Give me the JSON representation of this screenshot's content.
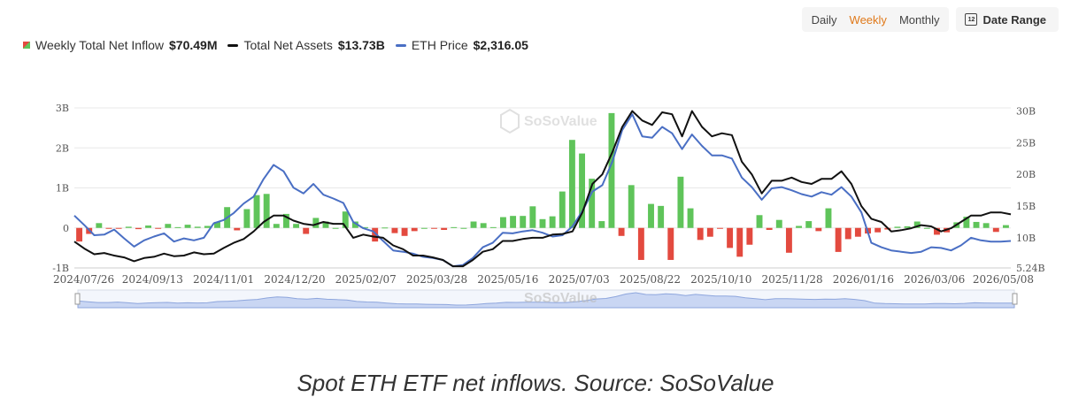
{
  "controls": {
    "periods": [
      "Daily",
      "Weekly",
      "Monthly"
    ],
    "active_period": "Weekly",
    "date_range_label": "Date Range",
    "calendar_day": "12"
  },
  "legend": {
    "inflow_label": "Weekly Total Net Inflow",
    "inflow_value": "$70.49M",
    "assets_label": "Total Net Assets",
    "assets_value": "$13.73B",
    "price_label": "ETH Price",
    "price_value": "$2,316.05"
  },
  "watermark": "SoSoValue",
  "caption": "Spot ETH ETF net inflows. Source: SoSoValue",
  "colors": {
    "positive": "#5fc45a",
    "negative": "#e34a3f",
    "assets": "#111111",
    "price": "#4a6fc4",
    "navigator": "#c9d6f3"
  },
  "chart_data": {
    "type": "bar+line",
    "x_tick_labels": [
      "2024/07/26",
      "2024/09/13",
      "2024/11/01",
      "2024/12/20",
      "2025/02/07",
      "2025/03/28",
      "2025/05/16",
      "2025/07/03",
      "2025/08/22",
      "2025/10/10",
      "2025/11/28",
      "2026/01/16",
      "2026/03/06",
      "2026/05/08"
    ],
    "left_axis": {
      "ticks": [
        "3B",
        "2B",
        "1B",
        "0",
        "-1B"
      ],
      "values": [
        3,
        2,
        1,
        0,
        -1
      ],
      "range": [
        -1,
        3
      ]
    },
    "right_axis": {
      "ticks": [
        "30B",
        "25B",
        "20B",
        "15B",
        "10B",
        "5.24B"
      ],
      "values": [
        30,
        25,
        20,
        15,
        10,
        5.24
      ],
      "range": [
        5.24,
        30.5
      ]
    },
    "series": [
      {
        "name": "Weekly Total Net Inflow",
        "axis": "left",
        "type": "bar",
        "values": [
          -0.34,
          -0.15,
          0.12,
          -0.02,
          -0.01,
          0.03,
          -0.03,
          0.06,
          -0.01,
          0.1,
          0.02,
          0.08,
          0.03,
          0.05,
          0.15,
          0.52,
          -0.06,
          0.47,
          0.82,
          0.85,
          0.1,
          0.35,
          0.1,
          -0.15,
          0.25,
          0.16,
          0.0,
          0.41,
          0.16,
          0.02,
          -0.34,
          0.01,
          -0.13,
          -0.2,
          -0.08,
          0.0,
          -0.01,
          -0.05,
          0.02,
          0.0,
          0.16,
          0.12,
          0.02,
          0.27,
          0.3,
          0.3,
          0.54,
          0.22,
          0.29,
          0.91,
          2.2,
          1.86,
          1.23,
          0.17,
          2.87,
          -0.2,
          1.07,
          -0.8,
          0.6,
          0.55,
          -0.8,
          1.28,
          0.49,
          -0.3,
          -0.22,
          -0.01,
          -0.5,
          -0.72,
          -0.42,
          0.32,
          -0.05,
          0.2,
          -0.62,
          0.05,
          0.17,
          -0.08,
          0.49,
          -0.6,
          -0.28,
          -0.22,
          -0.14,
          -0.11,
          -0.04,
          0.03,
          0.04,
          0.16,
          0.0,
          -0.17,
          -0.11,
          0.14,
          0.28,
          0.15,
          0.12,
          -0.1,
          0.07
        ]
      },
      {
        "name": "Total Net Assets",
        "axis": "right",
        "type": "line",
        "values": [
          9.4,
          8.3,
          7.4,
          7.6,
          7.2,
          6.9,
          6.3,
          6.8,
          7.0,
          7.5,
          7.1,
          7.2,
          7.7,
          7.4,
          7.5,
          8.4,
          9.2,
          9.8,
          11.0,
          12.5,
          13.5,
          13.5,
          12.7,
          12.2,
          12.0,
          12.5,
          12.2,
          12.2,
          10.0,
          10.5,
          10.2,
          10.0,
          8.8,
          8.2,
          7.2,
          7.2,
          6.9,
          6.5,
          5.5,
          5.5,
          6.5,
          7.8,
          8.2,
          9.5,
          9.5,
          9.8,
          10.0,
          10.0,
          10.5,
          10.6,
          11.0,
          14.0,
          18.5,
          20.0,
          23.5,
          27.5,
          30.0,
          28.5,
          27.8,
          29.8,
          29.5,
          26.0,
          30.0,
          27.5,
          26.0,
          26.5,
          26.2,
          22.0,
          20.0,
          17.0,
          19.0,
          19.0,
          19.5,
          18.8,
          18.5,
          19.3,
          19.3,
          20.5,
          18.5,
          15.0,
          13.0,
          12.5,
          11.0,
          11.2,
          11.5,
          12.0,
          11.8,
          11.0,
          11.5,
          12.5,
          13.5,
          13.5,
          14.0,
          14.0,
          13.7
        ]
      },
      {
        "name": "ETH Price",
        "axis": "right",
        "type": "line",
        "values": [
          3480,
          3220,
          2800,
          2830,
          3000,
          2720,
          2420,
          2650,
          2800,
          2870,
          2580,
          2720,
          2600,
          2720,
          3150,
          3290,
          3500,
          3800,
          4050,
          3910,
          3500,
          3380,
          3700,
          3400,
          3330,
          3250,
          2820,
          2620,
          2750,
          2200,
          2040,
          1800,
          1800,
          1830,
          1670,
          1560,
          1460,
          1550,
          1820,
          1820,
          2050,
          2540,
          2530,
          2620,
          2520,
          2650,
          2640,
          2500,
          2550,
          2610,
          2950,
          3600,
          3800,
          3700,
          4300,
          4780,
          4550,
          4350,
          4400,
          4560,
          4350,
          3960,
          4350,
          4200,
          4000,
          3950,
          3900,
          3450,
          3200,
          2850,
          3150,
          3200,
          3170,
          3000,
          2950,
          3100,
          2950,
          3150,
          3000,
          2900,
          2340,
          2230,
          2000,
          2000,
          1950,
          2000,
          2150,
          2100,
          2000,
          2150,
          2300,
          2200,
          2250,
          2250,
          2316
        ]
      },
      {
        "name": "ETH Price (rendered on right axis)",
        "axis": "right",
        "type": "line",
        "values": [
          13.5,
          12.0,
          10.4,
          10.5,
          11.3,
          9.9,
          8.6,
          9.6,
          10.2,
          10.7,
          9.4,
          9.9,
          9.6,
          10.0,
          12.3,
          12.8,
          13.9,
          15.4,
          16.5,
          19.3,
          21.5,
          20.5,
          17.9,
          17.0,
          18.5,
          16.8,
          16.2,
          15.5,
          12.5,
          11.5,
          11.0,
          9.5,
          8.0,
          7.8,
          7.5,
          7.0,
          6.8,
          6.5,
          5.5,
          5.7,
          6.8,
          8.5,
          9.2,
          10.8,
          10.7,
          11.0,
          11.2,
          10.8,
          10.2,
          10.4,
          11.8,
          14.2,
          17.3,
          18.3,
          22.0,
          27.0,
          29.5,
          26.0,
          25.8,
          27.5,
          26.5,
          24.0,
          26.3,
          24.5,
          23.0,
          23.0,
          22.5,
          19.5,
          18.0,
          16.0,
          17.8,
          18.0,
          17.5,
          16.9,
          16.5,
          17.2,
          16.8,
          18.0,
          16.5,
          14.0,
          9.2,
          8.5,
          8.0,
          7.8,
          7.6,
          7.8,
          8.5,
          8.4,
          8.0,
          8.8,
          10.0,
          9.6,
          9.4,
          9.4,
          9.5
        ]
      }
    ]
  }
}
